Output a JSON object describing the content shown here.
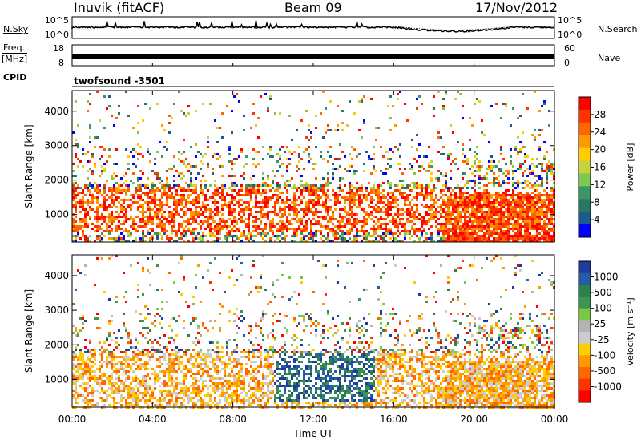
{
  "header": {
    "station": "Inuvik (fitACF)",
    "beam": "Beam 09",
    "date": "17/Nov/2012"
  },
  "top_left_labels": {
    "nsky": "N.Sky",
    "freq": "Freq.",
    "freq_unit": "[MHz]",
    "cpid": "CPID"
  },
  "top_right_labels": {
    "nsearch": "N.Search",
    "nave": "Nave"
  },
  "cpid_value": "twofsound -3501",
  "chart_data": [
    {
      "type": "line",
      "panel": "noise",
      "series": [
        {
          "name": "N.Sky"
        },
        {
          "name": "N.Search"
        }
      ],
      "y_tick_labels_left": [
        "10^5",
        "10^0"
      ],
      "y_tick_labels_right": [
        "10^5",
        "10^0"
      ],
      "y_scale": "log"
    },
    {
      "type": "line",
      "panel": "frequency",
      "series": [
        {
          "name": "Freq.",
          "unit": "MHz"
        },
        {
          "name": "Nave"
        }
      ],
      "y_tick_labels_left": [
        "18",
        "8"
      ],
      "y_tick_labels_right": [
        "60",
        "0"
      ],
      "ylim": [
        8,
        18
      ]
    },
    {
      "type": "heatmap",
      "panel": "power",
      "ylabel": "Slant Range [km]",
      "xlabel": "",
      "y_ticks": [
        1000,
        2000,
        3000,
        4000
      ],
      "ylim": [
        200,
        4600
      ],
      "colorbar_label": "Power [dB]",
      "colorbar_ticks": [
        "28",
        "24",
        "20",
        "16",
        "12",
        "8",
        "4"
      ],
      "colorbar_colors": [
        "#ff0000",
        "#ff3300",
        "#ff6600",
        "#ff9900",
        "#ffcc00",
        "#c8d23c",
        "#7cc850",
        "#3c9664",
        "#287860",
        "#1e5a8c",
        "#0000ff"
      ]
    },
    {
      "type": "heatmap",
      "panel": "velocity",
      "ylabel": "Slant Range [km]",
      "xlabel": "Time UT",
      "y_ticks": [
        1000,
        2000,
        3000,
        4000
      ],
      "ylim": [
        200,
        4600
      ],
      "x_ticks": [
        "00:00",
        "04:00",
        "08:00",
        "12:00",
        "16:00",
        "20:00",
        "00:00"
      ],
      "xlim_hours": [
        0,
        24
      ],
      "colorbar_label": "Velocity [m s⁻¹]",
      "colorbar_ticks": [
        "1000",
        "500",
        "100",
        "25",
        "-25",
        "-100",
        "-500",
        "-1000"
      ],
      "colorbar_colors": [
        "#1e3ca0",
        "#285aaa",
        "#2d8050",
        "#3c9650",
        "#78c846",
        "#b4b4b4",
        "#cccccc",
        "#ffcc00",
        "#ff9900",
        "#ff6600",
        "#ff3300",
        "#ff0000"
      ]
    }
  ]
}
